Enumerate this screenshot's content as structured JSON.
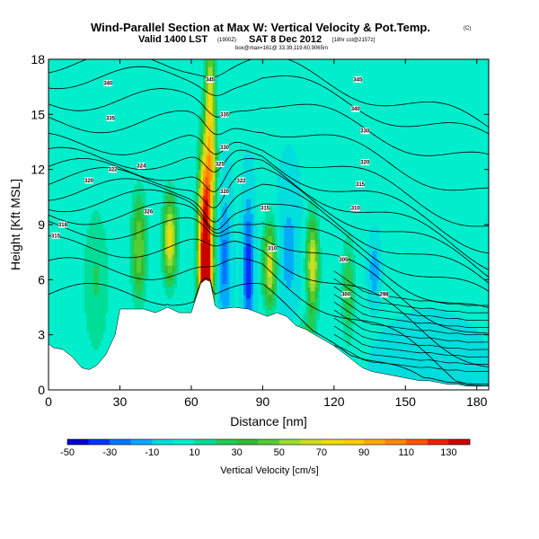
{
  "header": {
    "title": "Wind-Parallel Section at Max W: Vertical Velocity & Pot.Temp.",
    "copyright": "(C)",
    "valid_line": "Valid 1400 LST",
    "valid_utc": "(1900Z)",
    "valid_date": "SAT 8 Dec 2012",
    "forecast_note": "[18hr cst@2157z]",
    "subline": "box@max=161@ 33.39,119.60,9065m"
  },
  "colors": {
    "background": "#ffffff",
    "terrain": "#ffffff",
    "contour": "#000000"
  },
  "colorbar": {
    "tick_labels": [
      "-50",
      "-30",
      "-10",
      "10",
      "30",
      "50",
      "70",
      "90",
      "110",
      "130"
    ],
    "label": "Vertical Velocity [cm/s]",
    "levels": [
      -50,
      -40,
      -30,
      -20,
      -10,
      0,
      10,
      20,
      30,
      40,
      50,
      60,
      70,
      80,
      90,
      100,
      110,
      120,
      130,
      140
    ],
    "colors": [
      "#0000cc",
      "#0033ff",
      "#0077ff",
      "#00aaff",
      "#00dddd",
      "#00eecc",
      "#00dd99",
      "#22cc55",
      "#33bb33",
      "#55cc33",
      "#99dd33",
      "#ccdd22",
      "#eedd00",
      "#ffcc00",
      "#ffaa00",
      "#ff8800",
      "#ff5500",
      "#ee2200",
      "#cc0000"
    ]
  },
  "chart_data": {
    "type": "heatmap",
    "xlabel": "Distance [nm]",
    "ylabel": "Height [Kft MSL]",
    "xlim": [
      0,
      185
    ],
    "ylim": [
      0,
      18
    ],
    "xticks": [
      0,
      30,
      60,
      90,
      120,
      150,
      180
    ],
    "yticks": [
      0,
      3,
      6,
      9,
      12,
      15,
      18
    ],
    "background_value": 1,
    "terrain_profile": {
      "x": [
        0,
        2,
        6,
        10,
        14,
        17,
        20,
        24,
        28,
        30,
        40,
        45,
        50,
        55,
        60,
        64,
        66,
        68,
        70,
        72,
        78,
        84,
        88,
        92,
        96,
        100,
        104,
        108,
        112,
        116,
        120,
        124,
        128,
        132,
        136,
        140,
        144,
        148,
        152,
        156,
        160,
        164,
        168,
        172,
        176,
        180,
        185
      ],
      "height": [
        2.5,
        2.3,
        2.2,
        1.8,
        1.2,
        1.1,
        1.3,
        1.9,
        3.0,
        4.4,
        4.4,
        4.2,
        4.5,
        4.2,
        4.2,
        5.8,
        6.0,
        5.9,
        4.6,
        4.4,
        4.5,
        4.4,
        4.2,
        4.0,
        4.2,
        4.0,
        3.5,
        3.3,
        3.0,
        2.7,
        2.4,
        2.0,
        1.6,
        1.2,
        1.0,
        0.9,
        0.8,
        0.7,
        0.6,
        0.5,
        0.5,
        0.4,
        0.3,
        0.3,
        0.2,
        0.2,
        0.2
      ]
    },
    "features": [
      {
        "x": 66,
        "y": 9,
        "value": 135,
        "sx": 2.0,
        "sy": 3.0
      },
      {
        "x": 66,
        "y": 6,
        "value": 95,
        "sx": 2.0,
        "sy": 1.6
      },
      {
        "x": 68,
        "y": 15.5,
        "value": 70,
        "sx": 1.5,
        "sy": 2.5
      },
      {
        "x": 69,
        "y": 12,
        "value": 30,
        "sx": 1.5,
        "sy": 1.5
      },
      {
        "x": 51,
        "y": 8.2,
        "value": 75,
        "sx": 2.0,
        "sy": 1.6
      },
      {
        "x": 38,
        "y": 7.8,
        "value": 50,
        "sx": 2.2,
        "sy": 2.0
      },
      {
        "x": 93,
        "y": 6.8,
        "value": 65,
        "sx": 2.0,
        "sy": 1.6
      },
      {
        "x": 111,
        "y": 6.8,
        "value": 70,
        "sx": 1.8,
        "sy": 1.8
      },
      {
        "x": 84,
        "y": 6.5,
        "value": -40,
        "sx": 1.5,
        "sy": 2.5
      },
      {
        "x": 74,
        "y": 7.0,
        "value": -25,
        "sx": 1.8,
        "sy": 2.5
      },
      {
        "x": 101,
        "y": 7.5,
        "value": -15,
        "sx": 3.0,
        "sy": 2.5
      },
      {
        "x": 137,
        "y": 6.5,
        "value": -20,
        "sx": 1.5,
        "sy": 1.0
      },
      {
        "x": 126,
        "y": 5.5,
        "value": 30,
        "sx": 2.0,
        "sy": 2.0
      },
      {
        "x": 20,
        "y": 6.0,
        "value": 20,
        "sx": 4.0,
        "sy": 3.0
      },
      {
        "x": 160,
        "y": 1.2,
        "value": -10,
        "sx": 12.0,
        "sy": 1.5
      },
      {
        "x": 108,
        "y": 2.5,
        "value": 25,
        "sx": 3.0,
        "sy": 1.0
      }
    ],
    "isentrope_base_heights": [
      5.2,
      6.6,
      7.8,
      8.8,
      9.6,
      10.3,
      10.9,
      11.5,
      12.0,
      12.6,
      13.4,
      14.6,
      15.8,
      17.0,
      17.8
    ],
    "isentrope_labels": [
      {
        "x": 3,
        "y": 8.4,
        "text": "315"
      },
      {
        "x": 6,
        "y": 9.0,
        "text": "318"
      },
      {
        "x": 17,
        "y": 11.4,
        "text": "320"
      },
      {
        "x": 27,
        "y": 12.0,
        "text": "322"
      },
      {
        "x": 39,
        "y": 12.2,
        "text": "324"
      },
      {
        "x": 42,
        "y": 9.7,
        "text": "326"
      },
      {
        "x": 26,
        "y": 14.8,
        "text": "335"
      },
      {
        "x": 25,
        "y": 16.7,
        "text": "340"
      },
      {
        "x": 68,
        "y": 16.9,
        "text": "345"
      },
      {
        "x": 74,
        "y": 15.0,
        "text": "335"
      },
      {
        "x": 74,
        "y": 13.2,
        "text": "330"
      },
      {
        "x": 72,
        "y": 12.3,
        "text": "325"
      },
      {
        "x": 74,
        "y": 10.8,
        "text": "320"
      },
      {
        "x": 81,
        "y": 11.4,
        "text": "322"
      },
      {
        "x": 91,
        "y": 9.9,
        "text": "315"
      },
      {
        "x": 94,
        "y": 7.7,
        "text": "310"
      },
      {
        "x": 124,
        "y": 7.1,
        "text": "305"
      },
      {
        "x": 125,
        "y": 5.2,
        "text": "300"
      },
      {
        "x": 129,
        "y": 9.9,
        "text": "310"
      },
      {
        "x": 131,
        "y": 11.2,
        "text": "315"
      },
      {
        "x": 133,
        "y": 12.4,
        "text": "320"
      },
      {
        "x": 133,
        "y": 14.1,
        "text": "330"
      },
      {
        "x": 129,
        "y": 15.3,
        "text": "340"
      },
      {
        "x": 130,
        "y": 16.9,
        "text": "345"
      },
      {
        "x": 141,
        "y": 5.2,
        "text": "298"
      }
    ]
  }
}
